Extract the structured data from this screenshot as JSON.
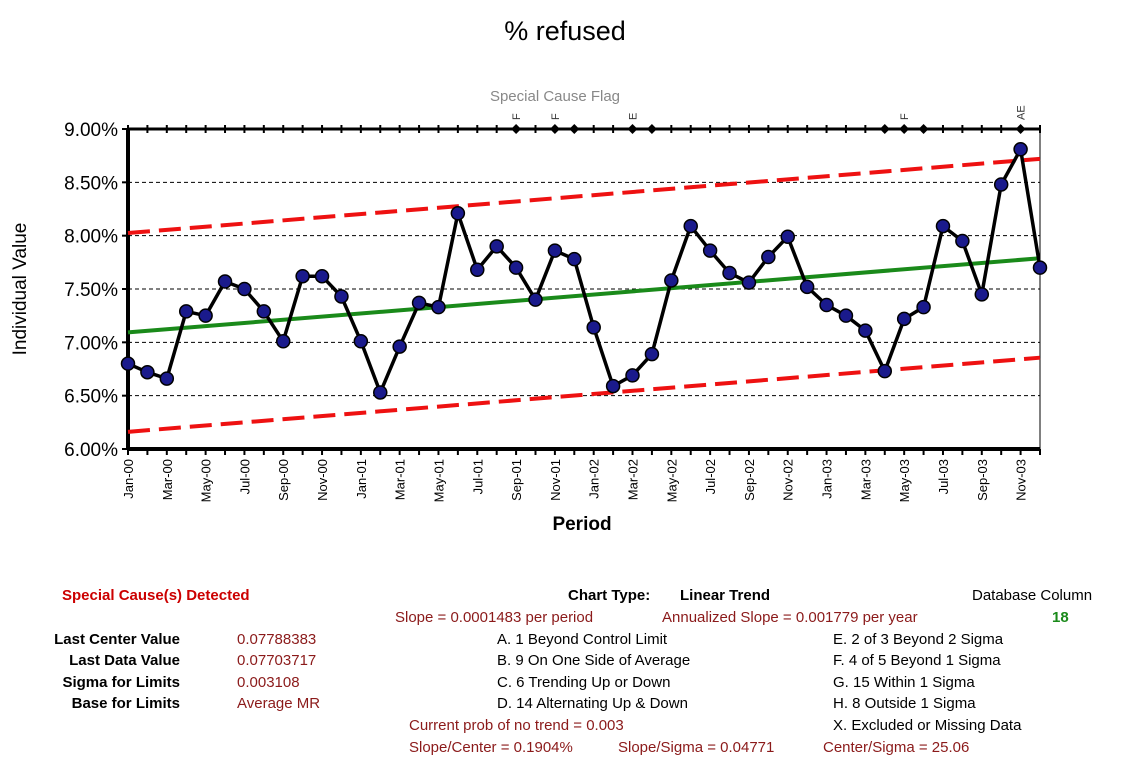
{
  "chart_data": {
    "type": "line",
    "title": "% refused",
    "subtitle": "Special Cause Flag",
    "xlabel": "Period",
    "ylabel": "Individual Value",
    "ylim": [
      0.06,
      0.09
    ],
    "y_ticks": [
      "6.00%",
      "6.50%",
      "7.00%",
      "7.50%",
      "8.00%",
      "8.50%",
      "9.00%"
    ],
    "x_tick_labels": [
      "Jan-00",
      "Mar-00",
      "May-00",
      "Jul-00",
      "Sep-00",
      "Nov-00",
      "Jan-01",
      "Mar-01",
      "May-01",
      "Jul-01",
      "Sep-01",
      "Nov-01",
      "Jan-02",
      "Mar-02",
      "May-02",
      "Jul-02",
      "Sep-02",
      "Nov-02",
      "Jan-03",
      "Mar-03",
      "May-03",
      "Jul-03",
      "Sep-03",
      "Nov-03"
    ],
    "grid": true,
    "series": [
      {
        "values": [
          0.068,
          0.0672,
          0.0666,
          0.0729,
          0.0725,
          0.0757,
          0.075,
          0.0729,
          0.0701,
          0.0762,
          0.0762,
          0.0743,
          0.0701,
          0.0653,
          0.0696,
          0.0737,
          0.0733,
          0.0821,
          0.0768,
          0.079,
          0.077,
          0.074,
          0.0786,
          0.0778,
          0.0714,
          0.0659,
          0.0669,
          0.0689,
          0.0758,
          0.0809,
          0.0786,
          0.0765,
          0.0756,
          0.078,
          0.0799,
          0.0752,
          0.0735,
          0.0725,
          0.0711,
          0.0673,
          0.0722,
          0.0733,
          0.0809,
          0.0795,
          0.0745,
          0.0848,
          0.0881,
          0.077
        ],
        "color": "#000000",
        "marker_color": "#1a1a8c"
      },
      {
        "kind": "center",
        "start": 0.07093,
        "end": 0.07788383,
        "color": "#1a8a1a"
      },
      {
        "kind": "upper_limit",
        "start": 0.08025,
        "end": 0.0872,
        "color": "#ee1111"
      },
      {
        "kind": "lower_limit",
        "start": 0.06161,
        "end": 0.06856,
        "color": "#ee1111"
      }
    ],
    "flags": [
      {
        "period": 20,
        "label": "F"
      },
      {
        "period": 22,
        "label": "F"
      },
      {
        "period": 23,
        "label": ""
      },
      {
        "period": 26,
        "label": "E"
      },
      {
        "period": 27,
        "label": ""
      },
      {
        "period": 39,
        "label": ""
      },
      {
        "period": 40,
        "label": "F"
      },
      {
        "period": 41,
        "label": ""
      },
      {
        "period": 46,
        "label": "AE"
      }
    ]
  },
  "summary": {
    "special_cause": "Special Cause(s) Detected",
    "chart_type_label": "Chart Type:",
    "chart_type_value": "Linear Trend",
    "database_column_label": "Database Column",
    "database_column_value": "18",
    "slope": "Slope = 0.0001483 per period",
    "annualized_slope": "Annualized Slope = 0.001779 per year",
    "stats": [
      {
        "label": "Last Center Value",
        "value": "0.07788383"
      },
      {
        "label": "Last Data Value",
        "value": "0.07703717"
      },
      {
        "label": "Sigma for Limits",
        "value": "0.003108"
      },
      {
        "label": "Base for Limits",
        "value": "Average MR"
      }
    ],
    "rules_left": [
      "A. 1 Beyond Control Limit",
      "B. 9 On One Side of Average",
      "C. 6 Trending Up or Down",
      "D. 14 Alternating  Up & Down"
    ],
    "rules_right": [
      "E.  2 of 3 Beyond 2 Sigma",
      "F.  4 of 5 Beyond 1 Sigma",
      "G.  15 Within 1 Sigma",
      "H.  8 Outside 1 Sigma",
      "X.  Excluded or Missing Data"
    ],
    "prob_no_trend": "Current prob of no trend = 0.003",
    "slope_center": "Slope/Center = 0.1904%",
    "slope_sigma": "Slope/Sigma = 0.04771",
    "center_sigma": "Center/Sigma = 25.06"
  }
}
